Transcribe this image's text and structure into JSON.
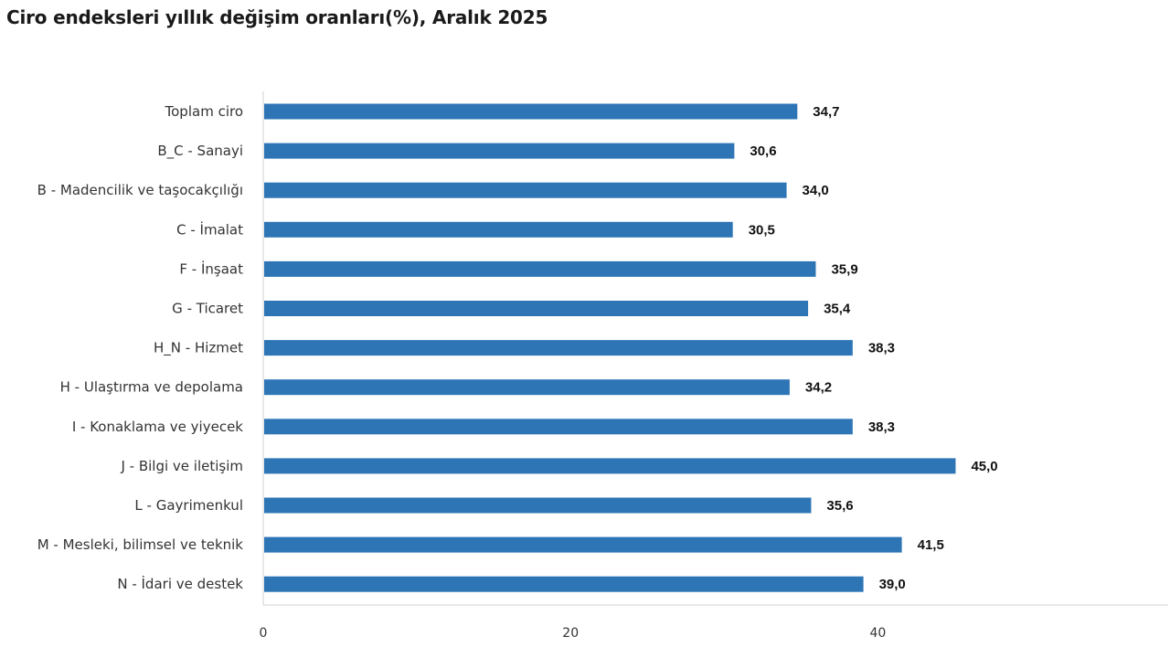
{
  "chart_data": {
    "type": "bar",
    "orientation": "horizontal",
    "title": "Ciro endeksleri yıllık değişim oranları(%), Aralık 2025",
    "xlabel": "",
    "ylabel": "",
    "xlim": [
      0,
      60
    ],
    "x_ticks": [
      "0",
      "20",
      "40"
    ],
    "grid": false,
    "legend": "none",
    "bar_color": "#2e75b6",
    "categories": [
      "Toplam ciro",
      "B_C - Sanayi",
      "B - Madencilik ve taşocakçılığı",
      "C - İmalat",
      "F - İnşaat",
      "G - Ticaret",
      "H_N - Hizmet",
      "H - Ulaştırma ve depolama",
      "I - Konaklama ve yiyecek",
      "J - Bilgi ve iletişim",
      "L - Gayrimenkul",
      "M - Mesleki, bilimsel ve teknik",
      "N - İdari ve destek"
    ],
    "values": [
      34.7,
      30.6,
      34.0,
      30.5,
      35.9,
      35.4,
      38.3,
      34.2,
      38.3,
      45.0,
      35.6,
      41.5,
      39.0
    ],
    "value_labels": [
      "34,7",
      "30,6",
      "34,0",
      "30,5",
      "35,9",
      "35,4",
      "38,3",
      "34,2",
      "38,3",
      "45,0",
      "35,6",
      "41,5",
      "39,0"
    ]
  }
}
